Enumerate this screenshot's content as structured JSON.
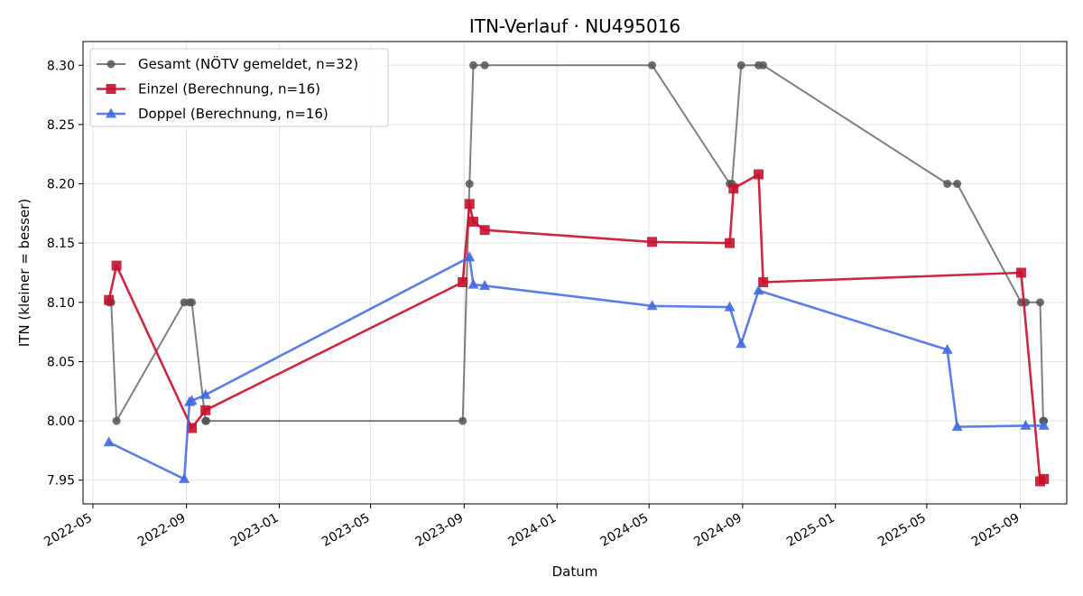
{
  "chart_data": {
    "type": "line",
    "title": "ITN-Verlauf · NU495016",
    "xlabel": "Datum",
    "ylabel": "ITN  (kleiner = besser)",
    "ylim": [
      7.93,
      8.32
    ],
    "xlim": [
      "2022-04-18",
      "2025-11-01"
    ],
    "grid": true,
    "legend_position": "top-left",
    "x_ticks": [
      "2022-05-01",
      "2022-09-01",
      "2023-01-01",
      "2023-05-01",
      "2023-09-01",
      "2024-01-01",
      "2024-05-01",
      "2024-09-01",
      "2025-01-01",
      "2025-05-01",
      "2025-09-01"
    ],
    "x_tick_labels": [
      "2022-05",
      "2022-09",
      "2023-01",
      "2023-05",
      "2023-09",
      "2024-01",
      "2024-05",
      "2024-09",
      "2025-01",
      "2025-05",
      "2025-09"
    ],
    "y_ticks": [
      7.95,
      8.0,
      8.05,
      8.1,
      8.15,
      8.2,
      8.25,
      8.3
    ],
    "y_tick_labels": [
      "7.95",
      "8.00",
      "8.05",
      "8.10",
      "8.15",
      "8.20",
      "8.25",
      "8.30"
    ],
    "series": [
      {
        "name": "Gesamt (NÖTV gemeldet, n=32)",
        "color": "#555555",
        "marker": "circle",
        "points": [
          [
            "2022-05-22",
            8.1
          ],
          [
            "2022-05-25",
            8.1
          ],
          [
            "2022-06-01",
            8.0
          ],
          [
            "2022-08-29",
            8.1
          ],
          [
            "2022-09-05",
            8.1
          ],
          [
            "2022-09-08",
            8.1
          ],
          [
            "2022-09-26",
            8.0
          ],
          [
            "2022-09-27",
            8.0
          ],
          [
            "2023-08-30",
            8.0
          ],
          [
            "2023-09-08",
            8.2
          ],
          [
            "2023-09-13",
            8.3
          ],
          [
            "2023-09-28",
            8.3
          ],
          [
            "2024-05-05",
            8.3
          ],
          [
            "2024-08-15",
            8.2
          ],
          [
            "2024-08-18",
            8.2
          ],
          [
            "2024-08-30",
            8.3
          ],
          [
            "2024-09-22",
            8.3
          ],
          [
            "2024-09-28",
            8.3
          ],
          [
            "2025-05-28",
            8.2
          ],
          [
            "2025-06-10",
            8.2
          ],
          [
            "2025-09-02",
            8.1
          ],
          [
            "2025-09-08",
            8.1
          ],
          [
            "2025-09-27",
            8.1
          ],
          [
            "2025-10-01",
            8.0
          ],
          [
            "2025-10-02",
            8.0
          ]
        ]
      },
      {
        "name": "Einzel (Berechnung, n=16)",
        "color": "#c8102e",
        "marker": "square",
        "points": [
          [
            "2022-05-22",
            8.102
          ],
          [
            "2022-06-01",
            8.131
          ],
          [
            "2022-09-08",
            7.994
          ],
          [
            "2022-09-26",
            8.009
          ],
          [
            "2023-08-30",
            8.117
          ],
          [
            "2023-09-08",
            8.183
          ],
          [
            "2023-09-13",
            8.168
          ],
          [
            "2023-09-28",
            8.161
          ],
          [
            "2024-05-05",
            8.151
          ],
          [
            "2024-08-15",
            8.15
          ],
          [
            "2024-08-20",
            8.196
          ],
          [
            "2024-09-22",
            8.208
          ],
          [
            "2024-09-28",
            8.117
          ],
          [
            "2025-09-02",
            8.125
          ],
          [
            "2025-09-27",
            7.949
          ],
          [
            "2025-10-02",
            7.951
          ]
        ]
      },
      {
        "name": "Doppel (Berechnung, n=16)",
        "color": "#4169e1",
        "marker": "triangle",
        "points": [
          [
            "2022-05-22",
            7.982
          ],
          [
            "2022-08-29",
            7.951
          ],
          [
            "2022-09-05",
            8.016
          ],
          [
            "2022-09-08",
            8.017
          ],
          [
            "2022-09-26",
            8.022
          ],
          [
            "2023-09-08",
            8.138
          ],
          [
            "2023-09-13",
            8.115
          ],
          [
            "2023-09-28",
            8.114
          ],
          [
            "2024-05-05",
            8.097
          ],
          [
            "2024-08-15",
            8.096
          ],
          [
            "2024-08-30",
            8.065
          ],
          [
            "2024-09-22",
            8.11
          ],
          [
            "2025-05-28",
            8.06
          ],
          [
            "2025-06-10",
            7.995
          ],
          [
            "2025-09-08",
            7.996
          ],
          [
            "2025-10-02",
            7.996
          ]
        ]
      }
    ]
  }
}
